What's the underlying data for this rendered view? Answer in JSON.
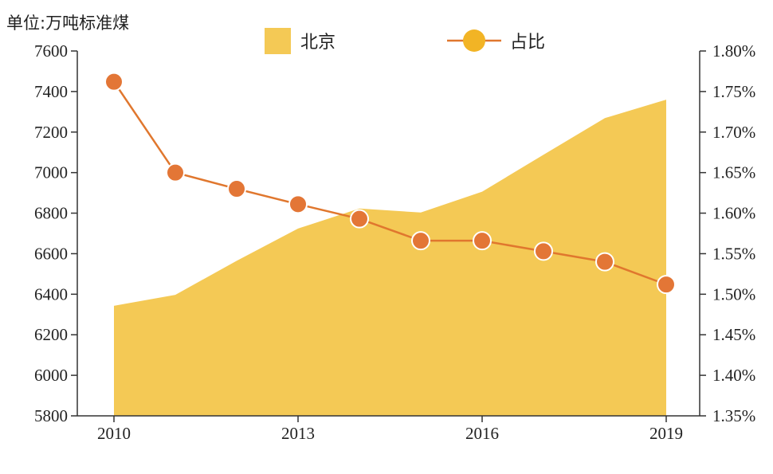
{
  "chart_data": {
    "type": "area",
    "unit_label": "单位:万吨标准煤",
    "x": [
      2010,
      2011,
      2012,
      2013,
      2014,
      2015,
      2016,
      2017,
      2018,
      2019
    ],
    "x_tick_labels": [
      "2010",
      "2013",
      "2016",
      "2019"
    ],
    "x_tick_values": [
      2010,
      2013,
      2016,
      2019
    ],
    "y_left": {
      "range": [
        5800,
        7600
      ],
      "ticks": [
        5800,
        6000,
        6200,
        6400,
        6600,
        6800,
        7000,
        7200,
        7400,
        7600
      ],
      "tick_labels": [
        "5800",
        "6000",
        "6200",
        "6400",
        "6600",
        "6800",
        "7000",
        "7200",
        "7400",
        "7600"
      ]
    },
    "y_right": {
      "range": [
        1.35,
        1.8
      ],
      "ticks": [
        1.35,
        1.4,
        1.45,
        1.5,
        1.55,
        1.6,
        1.65,
        1.7,
        1.75,
        1.8
      ],
      "tick_labels": [
        "1.35%",
        "1.40%",
        "1.45%",
        "1.50%",
        "1.55%",
        "1.60%",
        "1.65%",
        "1.70%",
        "1.75%",
        "1.80%"
      ]
    },
    "series": [
      {
        "name": "北京",
        "kind": "area",
        "axis": "left",
        "color": "#F4C955",
        "values": [
          6343,
          6397,
          6565,
          6724,
          6823,
          6803,
          6906,
          7088,
          7269,
          7360
        ]
      },
      {
        "name": "占比",
        "kind": "line",
        "axis": "right",
        "line_color": "#E0772E",
        "marker_color": "#E37636",
        "legend_marker_color": "#F2B425",
        "values": [
          1.762,
          1.65,
          1.63,
          1.611,
          1.593,
          1.566,
          1.566,
          1.553,
          1.54,
          1.512
        ]
      }
    ],
    "legend_placement": "top-center",
    "grid": false
  }
}
